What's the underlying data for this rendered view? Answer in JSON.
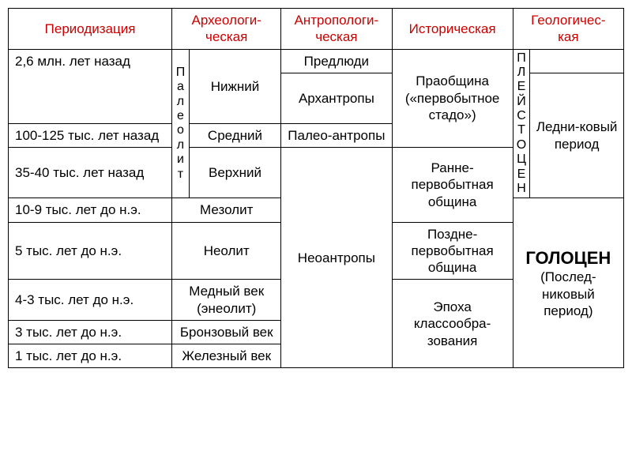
{
  "headers": {
    "period": "Периодизация",
    "archaeo": "Археологи-\nческая",
    "anthro": "Антропологи-\nческая",
    "hist": "Историческая",
    "geo": "Геологичес-\nкая"
  },
  "periods": {
    "p1": "2,6 млн. лет назад",
    "p2": "100-125 тыс. лет назад",
    "p3": "35-40 тыс. лет назад",
    "p4": "10-9 тыс. лет до н.э.",
    "p5": "5 тыс. лет до н.э.",
    "p6": "4-3 тыс. лет до н.э.",
    "p7": "3 тыс. лет до н.э.",
    "p8": "1 тыс. лет до н.э."
  },
  "archaeo": {
    "paleo_vert": "П\nа\nл\nе\nо\nл\nи\nт",
    "lower": "Нижний",
    "middle": "Средний",
    "upper": "Верхний",
    "meso": "Мезолит",
    "neo": "Неолит",
    "copper": "Медный век (энеолит)",
    "bronze": "Бронзовый век",
    "iron": "Железный век"
  },
  "anthro": {
    "pre": "Предлюди",
    "arch": "Архантропы",
    "paleo": "Палео-антропы",
    "neo": "Неоантропы"
  },
  "hist": {
    "proto": "Праобщина («первобытное стадо»)",
    "early": "Ранне-первобытная община",
    "late": "Поздне-первобытная община",
    "class": "Эпоха классообра-зования"
  },
  "geo": {
    "pleist_vert": "П\nЛ\nЕ\nЙ\nС\nТ\nО\nЦ\nЕ\nН",
    "empty": "",
    "ice": "Ледни-ковый период",
    "holo_bold": "ГОЛОЦЕН",
    "holo_sub": "(Послед-никовый период)"
  },
  "colors": {
    "header_text": "#cc0000",
    "border": "#000000",
    "background": "#ffffff"
  }
}
